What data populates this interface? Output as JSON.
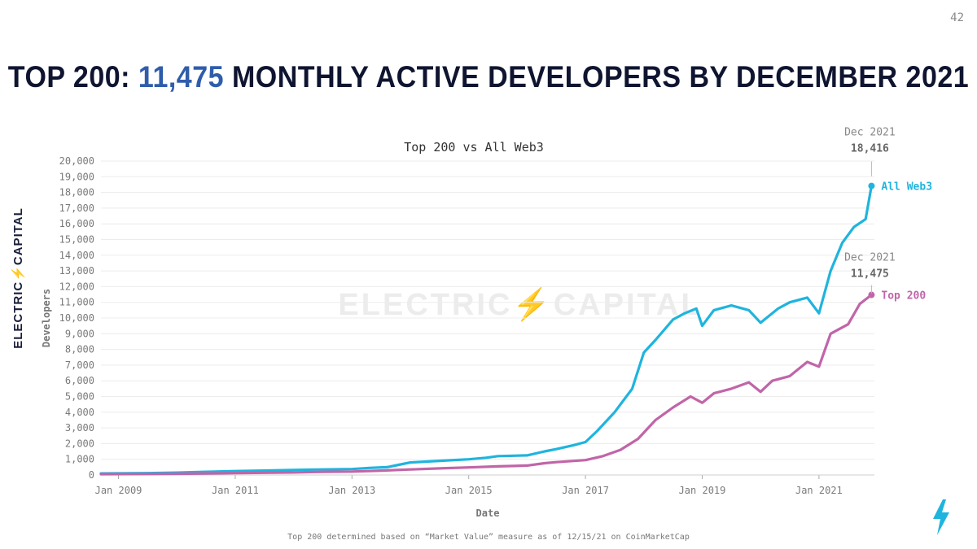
{
  "slide_number": "42",
  "title": {
    "prefix": "TOP 200: ",
    "highlight": "11,475",
    "suffix": " MONTHLY ACTIVE DEVELOPERS BY DECEMBER 2021",
    "highlight_color": "#2f5dab"
  },
  "brand": {
    "vertical_text": "ELECTRIC⚡CAPITAL",
    "watermark": "ELECTRIC⚡CAPITAL"
  },
  "footnote": "Top 200 determined based on “Market Value” measure as of 12/15/21 on CoinMarketCap",
  "chart_data": {
    "type": "line",
    "title": "Top 200 vs All Web3",
    "xlabel": "Date",
    "ylabel": "Developers",
    "xlim": [
      2008.7,
      2021.95
    ],
    "ylim": [
      0,
      20000
    ],
    "x_ticks": [
      {
        "value": 2009,
        "label": "Jan 2009"
      },
      {
        "value": 2011,
        "label": "Jan 2011"
      },
      {
        "value": 2013,
        "label": "Jan 2013"
      },
      {
        "value": 2015,
        "label": "Jan 2015"
      },
      {
        "value": 2017,
        "label": "Jan 2017"
      },
      {
        "value": 2019,
        "label": "Jan 2019"
      },
      {
        "value": 2021,
        "label": "Jan 2021"
      }
    ],
    "y_ticks": [
      {
        "value": 0,
        "label": "0"
      },
      {
        "value": 1000,
        "label": "1,000"
      },
      {
        "value": 2000,
        "label": "2,000"
      },
      {
        "value": 3000,
        "label": "3,000"
      },
      {
        "value": 4000,
        "label": "4,000"
      },
      {
        "value": 5000,
        "label": "5,000"
      },
      {
        "value": 6000,
        "label": "6,000"
      },
      {
        "value": 7000,
        "label": "7,000"
      },
      {
        "value": 8000,
        "label": "8,000"
      },
      {
        "value": 9000,
        "label": "9,000"
      },
      {
        "value": 10000,
        "label": "10,000"
      },
      {
        "value": 11000,
        "label": "11,000"
      },
      {
        "value": 12000,
        "label": "12,000"
      },
      {
        "value": 13000,
        "label": "13,000"
      },
      {
        "value": 14000,
        "label": "14,000"
      },
      {
        "value": 15000,
        "label": "15,000"
      },
      {
        "value": 16000,
        "label": "16,000"
      },
      {
        "value": 17000,
        "label": "17,000"
      },
      {
        "value": 18000,
        "label": "18,000"
      },
      {
        "value": 19000,
        "label": "19,000"
      },
      {
        "value": 20000,
        "label": "20,000"
      }
    ],
    "grid": true,
    "series": [
      {
        "name": "All Web3",
        "color": "#1fb4de",
        "end_label_date": "Dec 2021",
        "end_label_value": "18,416",
        "x": [
          2008.7,
          2009.5,
          2010.0,
          2010.5,
          2011.0,
          2011.5,
          2012.0,
          2012.5,
          2013.0,
          2013.3,
          2013.6,
          2013.8,
          2014.0,
          2014.5,
          2015.0,
          2015.3,
          2015.5,
          2016.0,
          2016.3,
          2016.5,
          2016.8,
          2017.0,
          2017.2,
          2017.5,
          2017.8,
          2018.0,
          2018.2,
          2018.5,
          2018.7,
          2018.9,
          2019.0,
          2019.2,
          2019.5,
          2019.8,
          2020.0,
          2020.3,
          2020.5,
          2020.8,
          2021.0,
          2021.2,
          2021.4,
          2021.6,
          2021.8,
          2021.9
        ],
        "y": [
          100,
          120,
          150,
          200,
          250,
          280,
          320,
          350,
          380,
          450,
          500,
          650,
          800,
          900,
          1000,
          1100,
          1200,
          1250,
          1500,
          1650,
          1900,
          2100,
          2800,
          4000,
          5500,
          7800,
          8600,
          9900,
          10300,
          10600,
          9500,
          10500,
          10800,
          10500,
          9700,
          10600,
          11000,
          11300,
          10300,
          13000,
          14800,
          15800,
          16300,
          18416
        ]
      },
      {
        "name": "Top 200",
        "color": "#c165a8",
        "end_label_date": "Dec 2021",
        "end_label_value": "11,475",
        "x": [
          2008.7,
          2009.5,
          2010.0,
          2010.5,
          2011.0,
          2011.5,
          2012.0,
          2012.5,
          2013.0,
          2013.5,
          2014.0,
          2014.5,
          2015.0,
          2015.5,
          2016.0,
          2016.3,
          2016.5,
          2017.0,
          2017.3,
          2017.6,
          2017.9,
          2018.2,
          2018.5,
          2018.8,
          2019.0,
          2019.2,
          2019.5,
          2019.8,
          2020.0,
          2020.2,
          2020.5,
          2020.8,
          2021.0,
          2021.2,
          2021.5,
          2021.7,
          2021.9
        ],
        "y": [
          50,
          60,
          80,
          100,
          120,
          140,
          160,
          200,
          220,
          280,
          350,
          420,
          480,
          550,
          600,
          750,
          820,
          950,
          1200,
          1600,
          2300,
          3500,
          4300,
          5000,
          4600,
          5200,
          5500,
          5900,
          5300,
          6000,
          6300,
          7200,
          6900,
          9000,
          9600,
          10900,
          11475
        ]
      }
    ]
  }
}
